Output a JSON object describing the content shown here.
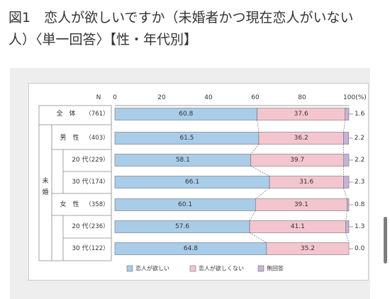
{
  "page": {
    "title": "図1　恋人が欲しいですか（未婚者かつ現在恋人がいない人）〈単一回答〉【性・年代別】"
  },
  "chart_data": {
    "type": "bar",
    "stacked": true,
    "orientation": "horizontal",
    "n_header": "N",
    "unit_label": "100(%)",
    "xlim": [
      0,
      100
    ],
    "x_ticks": [
      "0",
      "20",
      "40",
      "60",
      "80",
      "100(%)"
    ],
    "group_label": "未婚",
    "categories": [
      {
        "label": "全　体",
        "n": "（761）"
      },
      {
        "label": "男　性",
        "n": "（403）"
      },
      {
        "label": "20 代",
        "n": "（229）"
      },
      {
        "label": "30 代",
        "n": "（174）"
      },
      {
        "label": "女　性",
        "n": "（358）"
      },
      {
        "label": "20 代",
        "n": "（236）"
      },
      {
        "label": "30 代",
        "n": "（122）"
      }
    ],
    "series": [
      {
        "name": "恋人が欲しい",
        "color": "#a9cce8",
        "values": [
          60.8,
          61.5,
          58.1,
          66.1,
          60.1,
          57.6,
          64.8
        ],
        "labels": [
          "60.8",
          "61.5",
          "58.1",
          "66.1",
          "60.1",
          "57.6",
          "64.8"
        ]
      },
      {
        "name": "恋人が欲しくない",
        "color": "#f3c6cf",
        "values": [
          37.6,
          36.2,
          39.7,
          31.6,
          39.1,
          41.1,
          35.2
        ],
        "labels": [
          "37.6",
          "36.2",
          "39.7",
          "31.6",
          "39.1",
          "41.1",
          "35.2"
        ]
      },
      {
        "name": "無回答",
        "color": "#c6b3d9",
        "values": [
          1.6,
          2.2,
          2.2,
          2.3,
          0.8,
          1.3,
          0.0
        ],
        "labels": [
          "1.6",
          "2.2",
          "2.2",
          "2.3",
          "0.8",
          "1.3",
          "0.0"
        ]
      }
    ],
    "legend_position": "bottom"
  }
}
